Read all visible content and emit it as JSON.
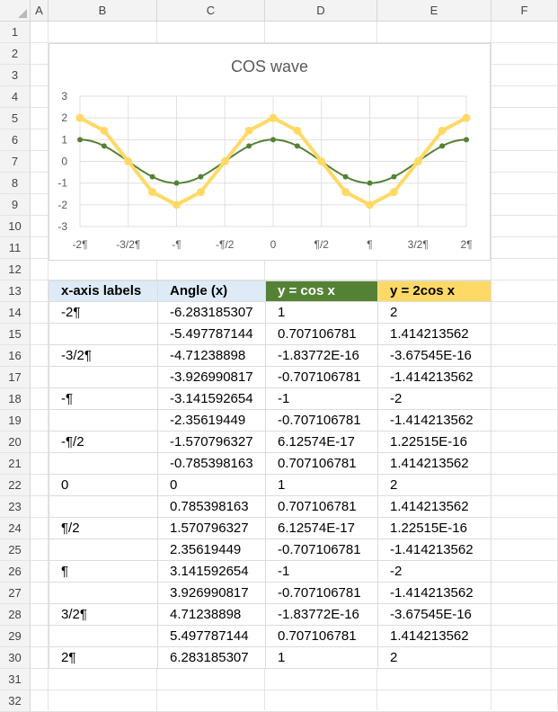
{
  "columns": [
    "A",
    "B",
    "C",
    "D",
    "E",
    "F"
  ],
  "rows": [
    "1",
    "2",
    "3",
    "4",
    "5",
    "6",
    "7",
    "8",
    "9",
    "10",
    "11",
    "12",
    "13",
    "14",
    "15",
    "16",
    "17",
    "18",
    "19",
    "20",
    "21",
    "22",
    "23",
    "24",
    "25",
    "26",
    "27",
    "28",
    "29",
    "30",
    "31",
    "32"
  ],
  "colors": {
    "cos": "#548235",
    "cos2x": "#ffd966",
    "hdr_x": "#deebf7",
    "hdr_angle": "#deebf7",
    "hdr_cos": "#548235",
    "hdr_cos2x": "#ffd966"
  },
  "table": {
    "headers": [
      "x-axis labels",
      "Angle (x)",
      "y = cos x",
      "y = 2cos x"
    ],
    "rows": [
      [
        "-2¶",
        "-6.283185307",
        "1",
        "2"
      ],
      [
        "",
        "-5.497787144",
        "0.707106781",
        "1.414213562"
      ],
      [
        "-3/2¶",
        "-4.71238898",
        "-1.83772E-16",
        "-3.67545E-16"
      ],
      [
        "",
        "-3.926990817",
        "-0.707106781",
        "-1.414213562"
      ],
      [
        "-¶",
        "-3.141592654",
        "-1",
        "-2"
      ],
      [
        "",
        "-2.35619449",
        "-0.707106781",
        "-1.414213562"
      ],
      [
        "-¶/2",
        "-1.570796327",
        "6.12574E-17",
        "1.22515E-16"
      ],
      [
        "",
        "-0.785398163",
        "0.707106781",
        "1.414213562"
      ],
      [
        "0",
        "0",
        "1",
        "2"
      ],
      [
        "",
        "0.785398163",
        "0.707106781",
        "1.414213562"
      ],
      [
        "¶/2",
        "1.570796327",
        "6.12574E-17",
        "1.22515E-16"
      ],
      [
        "",
        "2.35619449",
        "-0.707106781",
        "-1.414213562"
      ],
      [
        "¶",
        "3.141592654",
        "-1",
        "-2"
      ],
      [
        "",
        "3.926990817",
        "-0.707106781",
        "-1.414213562"
      ],
      [
        "3/2¶",
        "4.71238898",
        "-1.83772E-16",
        "-3.67545E-16"
      ],
      [
        "",
        "5.497787144",
        "0.707106781",
        "1.414213562"
      ],
      [
        "2¶",
        "6.283185307",
        "1",
        "2"
      ]
    ]
  },
  "chart_data": {
    "type": "line",
    "title": "COS wave",
    "xlabel": "",
    "ylabel": "",
    "x": [
      -6.283185307,
      -5.497787144,
      -4.71238898,
      -3.926990817,
      -3.141592654,
      -2.35619449,
      -1.570796327,
      -0.785398163,
      0,
      0.785398163,
      1.570796327,
      2.35619449,
      3.141592654,
      3.926990817,
      4.71238898,
      5.497787144,
      6.283185307
    ],
    "xticks": [
      "-2¶",
      "-3/2¶",
      "-¶",
      "-¶/2",
      "0",
      "¶/2",
      "¶",
      "3/2¶",
      "2¶"
    ],
    "yticks": [
      "3",
      "2",
      "1",
      "0",
      "-1",
      "-2",
      "-3"
    ],
    "ylim": [
      -3,
      3
    ],
    "grid": true,
    "legend": "none",
    "series": [
      {
        "values": [
          1,
          0.707106781,
          0,
          -0.707106781,
          -1,
          -0.707106781,
          0,
          0.707106781,
          1,
          0.707106781,
          0,
          -0.707106781,
          -1,
          -0.707106781,
          0,
          0.707106781,
          1
        ],
        "color": "#548235",
        "smooth": true
      },
      {
        "values": [
          2,
          1.414213562,
          0,
          -1.414213562,
          -2,
          -1.414213562,
          0,
          1.414213562,
          2,
          1.414213562,
          0,
          -1.414213562,
          -2,
          -1.414213562,
          0,
          1.414213562,
          2
        ],
        "color": "#ffd966",
        "smooth": false
      }
    ]
  }
}
